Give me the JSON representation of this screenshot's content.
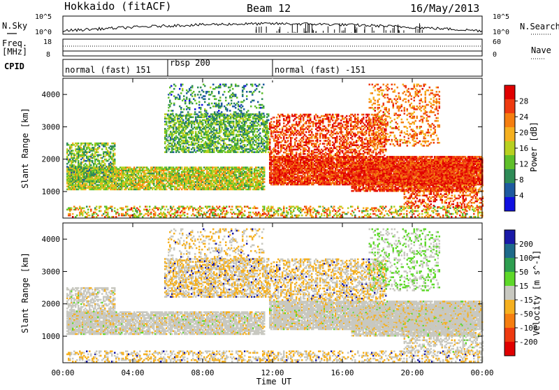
{
  "header": {
    "station": "Hokkaido (fitACF)",
    "beam": "Beam 12",
    "date": "16/May/2013"
  },
  "top_panel": {
    "nsky_label": "N.Sky",
    "freq_label_line1": "Freq.",
    "freq_label_line2": "[MHz]",
    "cpid_label": "CPID",
    "nsky_ticks": [
      "10^5",
      "10^0"
    ],
    "freq_ticks": [
      "18",
      "8"
    ],
    "nsearch_label": "N.Search",
    "nsearch_ticks": [
      "10^5",
      "10^0"
    ],
    "nave_label": "Nave",
    "nave_ticks": [
      "60",
      "0"
    ],
    "cpid_segments": [
      {
        "start_hour": 0,
        "end_hour": 6,
        "label": "normal (fast) 151"
      },
      {
        "start_hour": 6,
        "end_hour": 12,
        "label": "rbsp 200"
      },
      {
        "start_hour": 12,
        "end_hour": 24,
        "label": "normal (fast) -151"
      }
    ]
  },
  "chart_data": [
    {
      "type": "heatmap",
      "name": "power",
      "ylabel": "Slant Range [km]",
      "xlabel": "",
      "x_range_hours": [
        0,
        24
      ],
      "ylim": [
        180,
        4500
      ],
      "colorbar_label": "Power [dB]",
      "colorbar_ticks": [
        "4",
        "8",
        "12",
        "16",
        "20",
        "24",
        "28"
      ],
      "colorbar_colors": [
        "#1010e0",
        "#1e5aa0",
        "#2e8b57",
        "#5fbf2a",
        "#b8d020",
        "#f5b020",
        "#f57e10",
        "#ee3a10",
        "#e00000"
      ]
    },
    {
      "type": "heatmap",
      "name": "velocity",
      "ylabel": "Slant Range [km]",
      "xlabel": "Time UT",
      "x_range_hours": [
        0,
        24
      ],
      "ylim": [
        180,
        4500
      ],
      "colorbar_label": "Velocity [m s^-1]",
      "colorbar_ticks": [
        "200",
        "100",
        "50",
        "15",
        "-15",
        "-50",
        "-100",
        "-200"
      ],
      "colorbar_colors": [
        "#1a1aa8",
        "#1e6a8a",
        "#2e9e50",
        "#5ed82a",
        "#c8c8c0",
        "#f5b020",
        "#f57e10",
        "#ee3a10",
        "#e00000"
      ]
    }
  ],
  "axes": {
    "y_ticks": [
      "4000",
      "3000",
      "2000",
      "1000"
    ],
    "x_ticks": [
      "00:00",
      "04:00",
      "08:00",
      "12:00",
      "16:00",
      "20:00",
      "00:00"
    ],
    "xlabel": "Time UT"
  }
}
